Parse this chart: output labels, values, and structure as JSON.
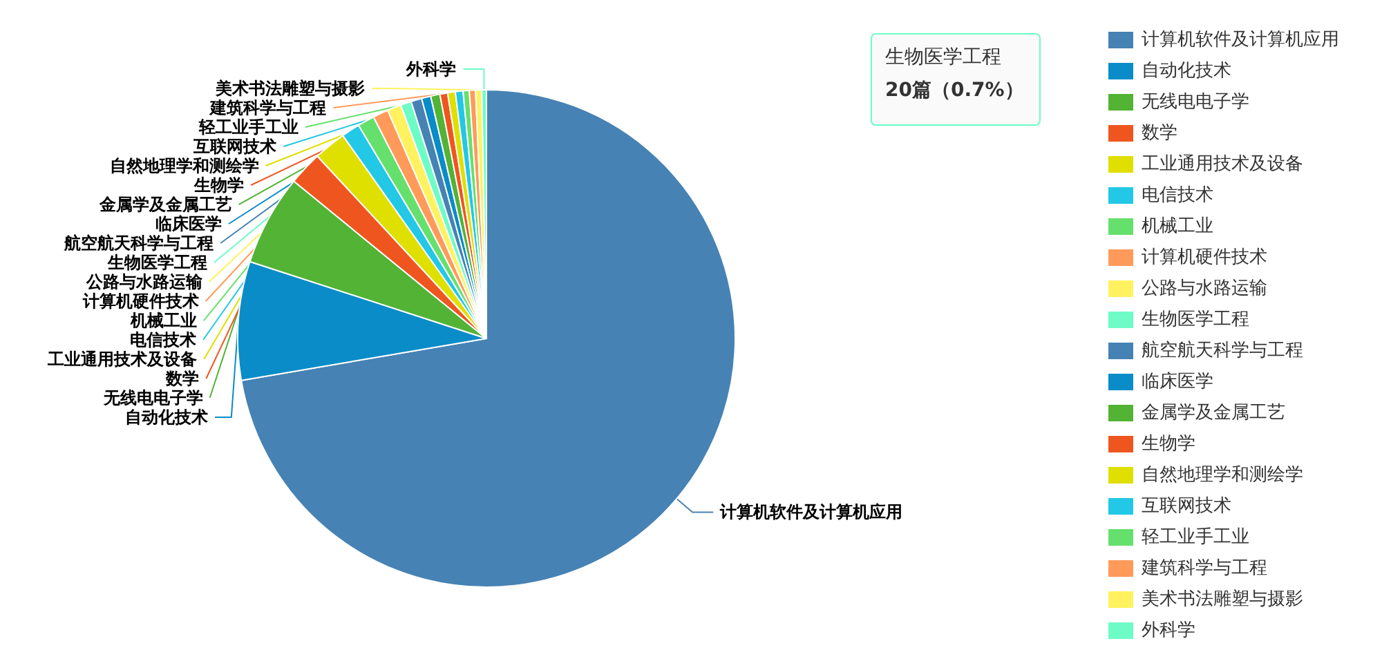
{
  "chart_data": {
    "type": "pie",
    "categories": [
      "计算机软件及计算机应用",
      "自动化技术",
      "无线电电子学",
      "数学",
      "工业通用技术及设备",
      "电信技术",
      "机械工业",
      "计算机硬件技术",
      "公路与水路运输",
      "生物医学工程",
      "航空航天科学与工程",
      "临床医学",
      "金属学及金属工艺",
      "生物学",
      "自然地理学和测绘学",
      "互联网技术",
      "轻工业手工业",
      "建筑科学与工程",
      "美术书法雕塑与摄影",
      "外科学"
    ],
    "values": [
      72.3,
      7.7,
      5.9,
      2.2,
      2.1,
      1.2,
      1.1,
      1.0,
      0.9,
      0.7,
      0.7,
      0.6,
      0.6,
      0.5,
      0.5,
      0.5,
      0.4,
      0.4,
      0.4,
      0.3
    ],
    "colors": [
      "#4682b4",
      "#0a8cc8",
      "#52b335",
      "#ef561f",
      "#dfdf00",
      "#22c8e5",
      "#66e06c",
      "#ff9a5a",
      "#fff25e",
      "#6dfcc6",
      "#4682b4",
      "#0a8cc8",
      "#52b335",
      "#ef561f",
      "#dfdf00",
      "#22c8e5",
      "#66e06c",
      "#ff9a5a",
      "#fff25e",
      "#6dfcc6"
    ],
    "legend": "right",
    "annotations": [
      "生物医学工程",
      "20篇（0.7%）"
    ]
  }
}
